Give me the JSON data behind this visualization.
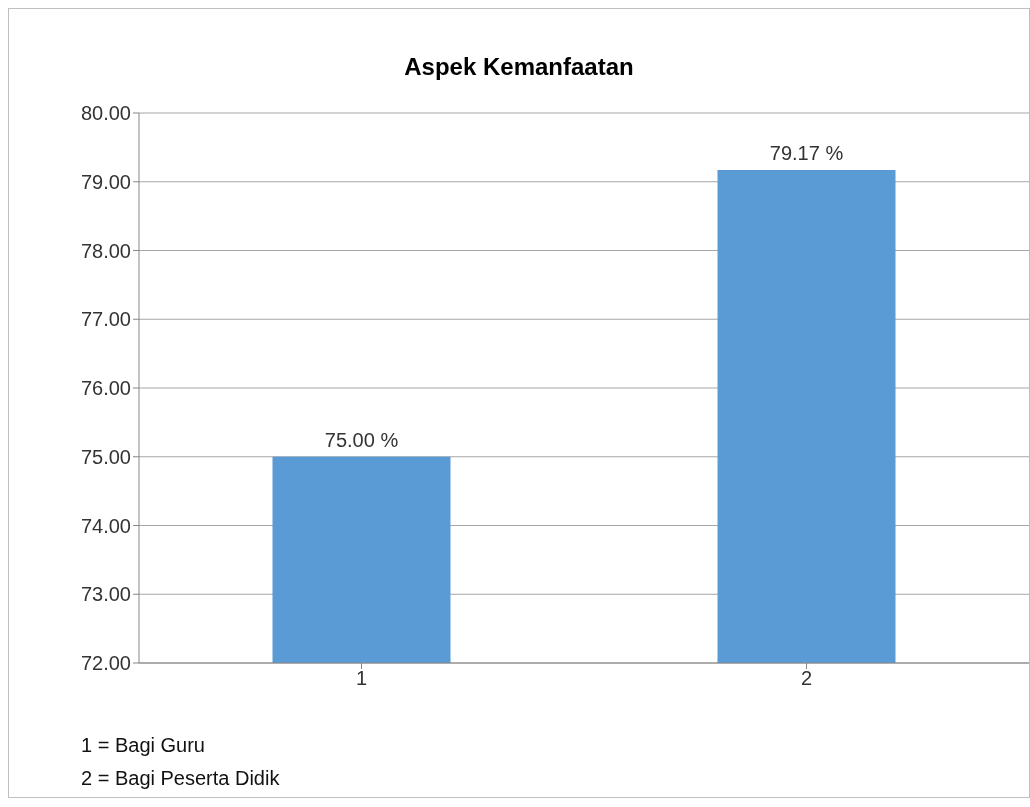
{
  "chart_data": {
    "type": "bar",
    "title": "Aspek Kemanfaatan",
    "categories": [
      "1",
      "2"
    ],
    "values": [
      75.0,
      79.17
    ],
    "value_labels": [
      "75.00  %",
      "79.17  %"
    ],
    "color": "#5b9bd5",
    "ylim": [
      72,
      80
    ],
    "yticks": [
      {
        "value": 72,
        "label": "72.00"
      },
      {
        "value": 73,
        "label": "73.00"
      },
      {
        "value": 74,
        "label": "74.00"
      },
      {
        "value": 75,
        "label": "75.00"
      },
      {
        "value": 76,
        "label": "76.00"
      },
      {
        "value": 77,
        "label": "77.00"
      },
      {
        "value": 78,
        "label": "78.00"
      },
      {
        "value": 79,
        "label": "79.00"
      },
      {
        "value": 80,
        "label": "80.00"
      }
    ],
    "grid": "y",
    "legend": false,
    "annotations": [
      "1 = Bagi Guru",
      "2 = Bagi Peserta Didik"
    ]
  }
}
